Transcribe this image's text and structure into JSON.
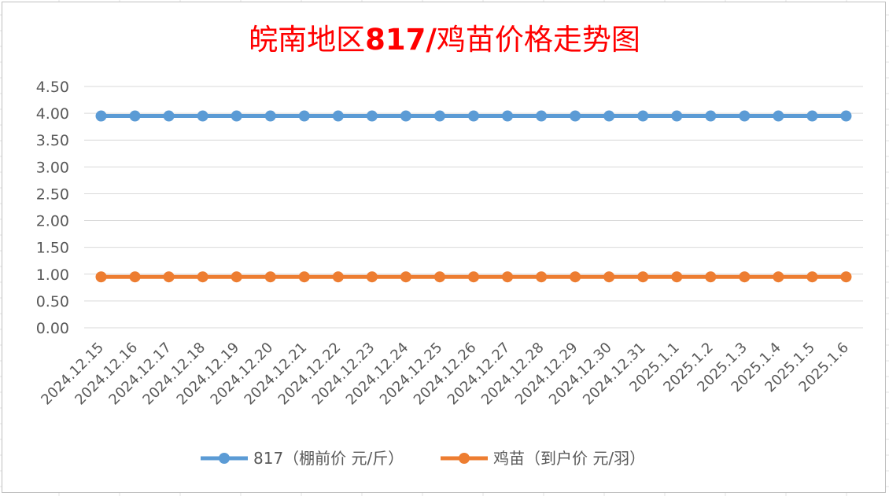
{
  "chart_data": {
    "type": "line",
    "title": "皖南地区817/鸡苗价格走势图",
    "categories": [
      "2024.12.15",
      "2024.12.16",
      "2024.12.17",
      "2024.12.18",
      "2024.12.19",
      "2024.12.20",
      "2024.12.21",
      "2024.12.22",
      "2024.12.23",
      "2024.12.24",
      "2024.12.25",
      "2024.12.26",
      "2024.12.27",
      "2024.12.28",
      "2024.12.29",
      "2024.12.30",
      "2024.12.31",
      "2025.1.1",
      "2025.1.2",
      "2025.1.3",
      "2025.1.4",
      "2025.1.5",
      "2025.1.6"
    ],
    "series": [
      {
        "name": "817（棚前价 元/斤）",
        "color": "#5b9bd5",
        "values": [
          3.95,
          3.95,
          3.95,
          3.95,
          3.95,
          3.95,
          3.95,
          3.95,
          3.95,
          3.95,
          3.95,
          3.95,
          3.95,
          3.95,
          3.95,
          3.95,
          3.95,
          3.95,
          3.95,
          3.95,
          3.95,
          3.95,
          3.95
        ]
      },
      {
        "name": "鸡苗（到户价 元/羽）",
        "color": "#ed7d31",
        "values": [
          0.95,
          0.95,
          0.95,
          0.95,
          0.95,
          0.95,
          0.95,
          0.95,
          0.95,
          0.95,
          0.95,
          0.95,
          0.95,
          0.95,
          0.95,
          0.95,
          0.95,
          0.95,
          0.95,
          0.95,
          0.95,
          0.95,
          0.95
        ]
      }
    ],
    "yticks": [
      "0.00",
      "0.50",
      "1.00",
      "1.50",
      "2.00",
      "2.50",
      "3.00",
      "3.50",
      "4.00",
      "4.50"
    ],
    "ylim": [
      0,
      4.5
    ],
    "grid": true,
    "legend_position": "bottom",
    "title_color": "#ff0000"
  }
}
